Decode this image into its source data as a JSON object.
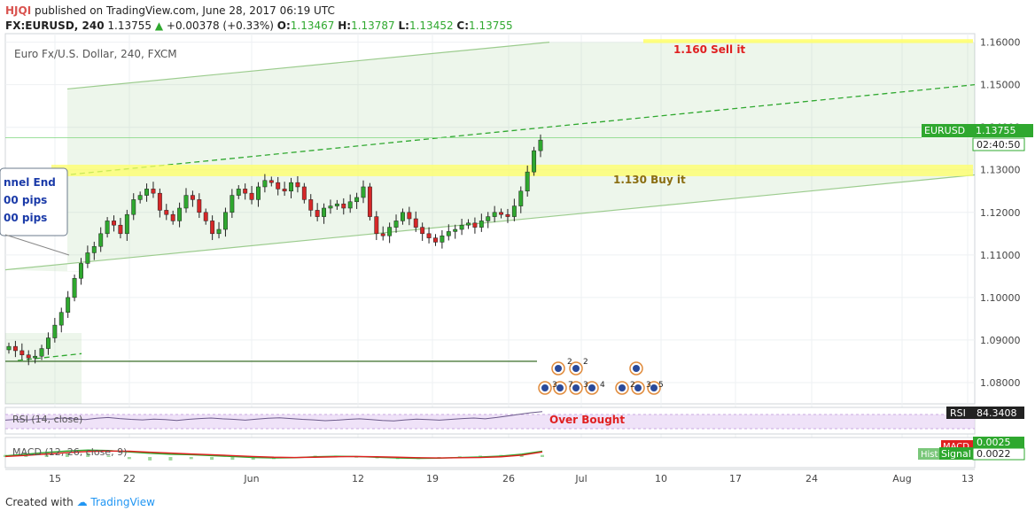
{
  "header": {
    "user": "HJQI",
    "published": "published on TradingView.com, June 28, 2017 06:19 UTC",
    "symbol": "FX:EURUSD, 240",
    "last": "1.13755",
    "change": "+0.00378 (+0.33%)",
    "o_label": "O:",
    "o": "1.13467",
    "h_label": "H:",
    "h": "1.13787",
    "l_label": "L:",
    "l": "1.13452",
    "c_label": "C:",
    "c": "1.13755"
  },
  "footer": {
    "created_with": "Created with",
    "brand": "TradingView"
  },
  "colors": {
    "up": "#2fa82f",
    "down": "#d62728",
    "grid": "#e6e9ee",
    "channel": "#9ccc8e",
    "highlight": "#ffff66"
  },
  "chart_data": {
    "type": "candlestick",
    "title": "Euro Fx/U.S. Dollar, 240, FXCM",
    "y_ticks": [
      "1.16000",
      "1.15000",
      "1.14000",
      "1.13000",
      "1.12000",
      "1.11000",
      "1.10000",
      "1.09000",
      "1.08000"
    ],
    "ylim": [
      1.075,
      1.162
    ],
    "x_ticks": [
      "15",
      "22",
      "Jun",
      "12",
      "19",
      "26",
      "Jul",
      "10",
      "17",
      "24",
      "Aug",
      "13"
    ],
    "last_price_label": "EURUSD",
    "last_price": "1.13755",
    "countdown": "02:40:50",
    "annotations": {
      "sell": "1.160 Sell it",
      "buy": "1.130 Buy it",
      "channel_box": [
        "nnel End",
        "00 pips",
        "00 pips"
      ],
      "overbought": "Over Bought"
    },
    "levels": {
      "sell": 1.16,
      "buy": 1.13,
      "support": 1.085
    },
    "close_series": [
      1.0885,
      1.0875,
      1.0865,
      1.0858,
      1.0862,
      1.088,
      1.0905,
      1.0935,
      1.0965,
      1.1,
      1.1045,
      1.108,
      1.1105,
      1.112,
      1.115,
      1.118,
      1.117,
      1.115,
      1.1195,
      1.123,
      1.124,
      1.1255,
      1.1245,
      1.1205,
      1.1195,
      1.118,
      1.121,
      1.124,
      1.123,
      1.12,
      1.118,
      1.115,
      1.116,
      1.12,
      1.124,
      1.1255,
      1.1245,
      1.123,
      1.126,
      1.1275,
      1.127,
      1.1255,
      1.125,
      1.127,
      1.126,
      1.123,
      1.1205,
      1.119,
      1.121,
      1.1215,
      1.122,
      1.121,
      1.1225,
      1.1235,
      1.126,
      1.119,
      1.115,
      1.1145,
      1.1165,
      1.118,
      1.12,
      1.1185,
      1.1165,
      1.115,
      1.114,
      1.113,
      1.1145,
      1.1155,
      1.116,
      1.117,
      1.1175,
      1.1165,
      1.118,
      1.119,
      1.12,
      1.1195,
      1.119,
      1.1215,
      1.125,
      1.1295,
      1.1345,
      1.137
    ]
  },
  "rsi": {
    "label": "RSI (14, close)",
    "value_label": "RSI",
    "value": "84.3408",
    "series": [
      52,
      55,
      53,
      58,
      56,
      60,
      57,
      54,
      59,
      62,
      58,
      55,
      53,
      56,
      54,
      51,
      55,
      58,
      60,
      57,
      55,
      52,
      56,
      59,
      61,
      58,
      55,
      53,
      50,
      52,
      55,
      57,
      54,
      51,
      49,
      53,
      56,
      54,
      52,
      55,
      58,
      60,
      57,
      62,
      68,
      74,
      80,
      84
    ]
  },
  "macd": {
    "label": "MACD (12, 26, close, 9)",
    "macd_label": "MACD",
    "macd_value": "0.0025",
    "hist_label": "Hist",
    "signal_label": "Signal",
    "signal_value": "0.0022",
    "macd_series": [
      0.0005,
      0.0012,
      0.002,
      0.0026,
      0.003,
      0.0028,
      0.0022,
      0.0016,
      0.0012,
      0.001,
      0.0006,
      0.0002,
      -0.0002,
      -0.0004,
      -0.0003,
      0.0001,
      0.0003,
      0.0002,
      -0.0001,
      -0.0004,
      -0.0006,
      -0.0005,
      -0.0002,
      0.0,
      0.0004,
      0.0012,
      0.0025
    ],
    "signal_series": [
      0.0002,
      0.0007,
      0.0013,
      0.0019,
      0.0024,
      0.0026,
      0.0025,
      0.0021,
      0.0017,
      0.0013,
      0.001,
      0.0006,
      0.0002,
      -0.0001,
      -0.0002,
      -0.0001,
      0.0001,
      0.0002,
      0.0001,
      -0.0001,
      -0.0003,
      -0.0004,
      -0.0003,
      -0.0002,
      0.0001,
      0.0008,
      0.0022
    ]
  },
  "events": {
    "labels": [
      "2",
      "2",
      "3",
      "7",
      "3",
      "4",
      "2",
      "3",
      "5"
    ]
  }
}
